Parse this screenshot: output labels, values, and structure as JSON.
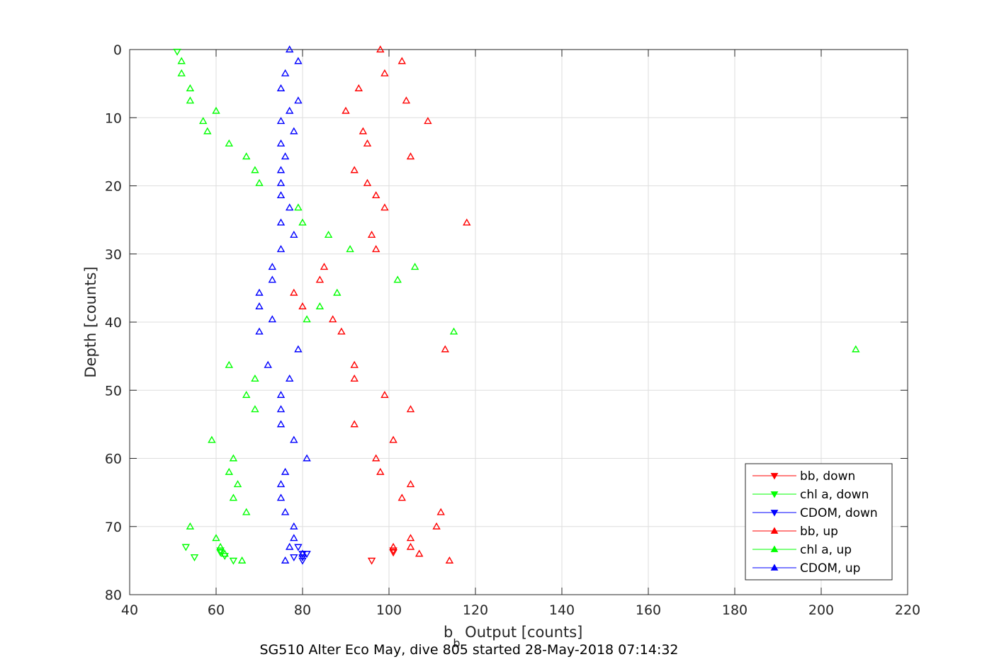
{
  "chart_data": {
    "type": "scatter",
    "title": "",
    "xlabel_main": "b",
    "xlabel_sub": "b",
    "xlabel_rest": " Output [counts]",
    "ylabel": "Depth [counts]",
    "subtitle": "SG510 Alter Eco May, dive 805 started 28-May-2018 07:14:32",
    "xlim": [
      40,
      220
    ],
    "ylim": [
      0,
      80
    ],
    "y_reversed": true,
    "xticks": [
      40,
      60,
      80,
      100,
      120,
      140,
      160,
      180,
      200,
      220
    ],
    "yticks": [
      0,
      10,
      20,
      30,
      40,
      50,
      60,
      70,
      80
    ],
    "xtick_labels": [
      "40",
      "60",
      "80",
      "100",
      "120",
      "140",
      "160",
      "180",
      "200",
      "220"
    ],
    "ytick_labels": [
      "0",
      "10",
      "20",
      "30",
      "40",
      "50",
      "60",
      "70",
      "80"
    ],
    "grid": true,
    "legend_position": "bottom-right",
    "series": [
      {
        "name": "bb, down",
        "color": "#ff0000",
        "marker": "triangle-down",
        "points": [
          [
            101,
            73.5
          ],
          [
            101,
            73.8
          ],
          [
            96,
            75.0
          ]
        ]
      },
      {
        "name": "chl a, down",
        "color": "#00ff00",
        "marker": "triangle-down",
        "points": [
          [
            51,
            0.3
          ],
          [
            53,
            73.0
          ],
          [
            55,
            74.5
          ],
          [
            61,
            73.5
          ],
          [
            61,
            73.8
          ],
          [
            62,
            74.3
          ],
          [
            64,
            75.0
          ]
        ]
      },
      {
        "name": "CDOM, down",
        "color": "#0000ff",
        "marker": "triangle-down",
        "points": [
          [
            79,
            73.0
          ],
          [
            80,
            74.0
          ],
          [
            80,
            74.5
          ],
          [
            81,
            74.0
          ],
          [
            80,
            75.0
          ],
          [
            78,
            74.5
          ]
        ]
      },
      {
        "name": "bb, up",
        "color": "#ff0000",
        "marker": "triangle-up",
        "points": [
          [
            98,
            0.0
          ],
          [
            103,
            1.7
          ],
          [
            99,
            3.5
          ],
          [
            93,
            5.7
          ],
          [
            104,
            7.5
          ],
          [
            90,
            9.0
          ],
          [
            109,
            10.5
          ],
          [
            94,
            12.0
          ],
          [
            95,
            13.8
          ],
          [
            105,
            15.7
          ],
          [
            92,
            17.7
          ],
          [
            95,
            19.6
          ],
          [
            97,
            21.4
          ],
          [
            99,
            23.2
          ],
          [
            118,
            25.4
          ],
          [
            96,
            27.2
          ],
          [
            97,
            29.3
          ],
          [
            85,
            31.9
          ],
          [
            84,
            33.8
          ],
          [
            78,
            35.7
          ],
          [
            80,
            37.7
          ],
          [
            87,
            39.6
          ],
          [
            89,
            41.4
          ],
          [
            113,
            44.0
          ],
          [
            92,
            46.3
          ],
          [
            92,
            48.3
          ],
          [
            99,
            50.7
          ],
          [
            105,
            52.8
          ],
          [
            92,
            55.0
          ],
          [
            101,
            57.3
          ],
          [
            97,
            60.0
          ],
          [
            98,
            62.0
          ],
          [
            105,
            63.8
          ],
          [
            103,
            65.8
          ],
          [
            112,
            67.9
          ],
          [
            111,
            70.0
          ],
          [
            105,
            71.7
          ],
          [
            101,
            73.0
          ],
          [
            107,
            74.0
          ],
          [
            114,
            75.0
          ],
          [
            105,
            73.0
          ]
        ]
      },
      {
        "name": "chl a, up",
        "color": "#00ff00",
        "marker": "triangle-up",
        "points": [
          [
            52,
            1.7
          ],
          [
            52,
            3.5
          ],
          [
            54,
            5.7
          ],
          [
            54,
            7.5
          ],
          [
            60,
            9.0
          ],
          [
            57,
            10.5
          ],
          [
            58,
            12.0
          ],
          [
            63,
            13.8
          ],
          [
            67,
            15.7
          ],
          [
            69,
            17.7
          ],
          [
            70,
            19.6
          ],
          [
            79,
            23.2
          ],
          [
            80,
            25.4
          ],
          [
            86,
            27.2
          ],
          [
            91,
            29.3
          ],
          [
            106,
            31.9
          ],
          [
            102,
            33.8
          ],
          [
            88,
            35.7
          ],
          [
            84,
            37.7
          ],
          [
            81,
            39.6
          ],
          [
            115,
            41.4
          ],
          [
            208,
            44.0
          ],
          [
            63,
            46.3
          ],
          [
            69,
            48.3
          ],
          [
            67,
            50.7
          ],
          [
            69,
            52.8
          ],
          [
            59,
            57.3
          ],
          [
            64,
            60.0
          ],
          [
            63,
            62.0
          ],
          [
            65,
            63.8
          ],
          [
            64,
            65.8
          ],
          [
            67,
            67.9
          ],
          [
            54,
            70.0
          ],
          [
            60,
            71.7
          ],
          [
            61,
            73.0
          ],
          [
            62,
            74.0
          ],
          [
            66,
            75.0
          ]
        ]
      },
      {
        "name": "CDOM, up",
        "color": "#0000ff",
        "marker": "triangle-up",
        "points": [
          [
            77,
            0.0
          ],
          [
            79,
            1.7
          ],
          [
            76,
            3.5
          ],
          [
            75,
            5.7
          ],
          [
            79,
            7.5
          ],
          [
            77,
            9.0
          ],
          [
            75,
            10.5
          ],
          [
            78,
            12.0
          ],
          [
            75,
            13.8
          ],
          [
            76,
            15.7
          ],
          [
            75,
            17.7
          ],
          [
            75,
            19.6
          ],
          [
            75,
            21.4
          ],
          [
            77,
            23.2
          ],
          [
            75,
            25.4
          ],
          [
            78,
            27.2
          ],
          [
            75,
            29.3
          ],
          [
            73,
            31.9
          ],
          [
            73,
            33.8
          ],
          [
            70,
            35.7
          ],
          [
            70,
            37.7
          ],
          [
            73,
            39.6
          ],
          [
            70,
            41.4
          ],
          [
            79,
            44.0
          ],
          [
            72,
            46.3
          ],
          [
            77,
            48.3
          ],
          [
            75,
            50.7
          ],
          [
            75,
            52.8
          ],
          [
            75,
            55.0
          ],
          [
            78,
            57.3
          ],
          [
            81,
            60.0
          ],
          [
            76,
            62.0
          ],
          [
            75,
            63.8
          ],
          [
            75,
            65.8
          ],
          [
            76,
            67.9
          ],
          [
            78,
            70.0
          ],
          [
            78,
            71.7
          ],
          [
            77,
            73.0
          ],
          [
            76,
            75.0
          ],
          [
            80,
            74.0
          ]
        ]
      }
    ]
  }
}
